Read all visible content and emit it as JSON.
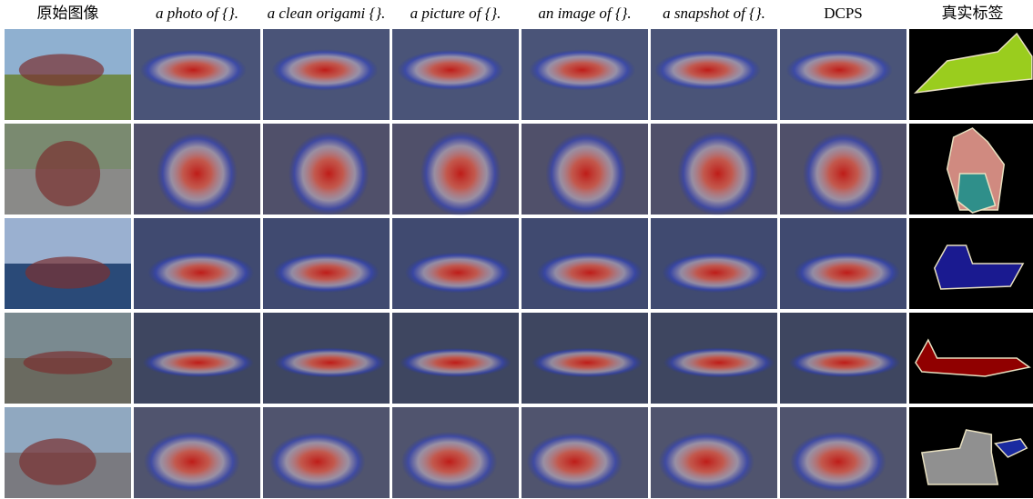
{
  "header": {
    "columns": [
      "原始图像",
      "a photo of {}.",
      "a clean origami {}.",
      "a picture of {}.",
      "an image of {}.",
      "a snapshot of {}.",
      "DCPS",
      "真实标签"
    ]
  }
}
